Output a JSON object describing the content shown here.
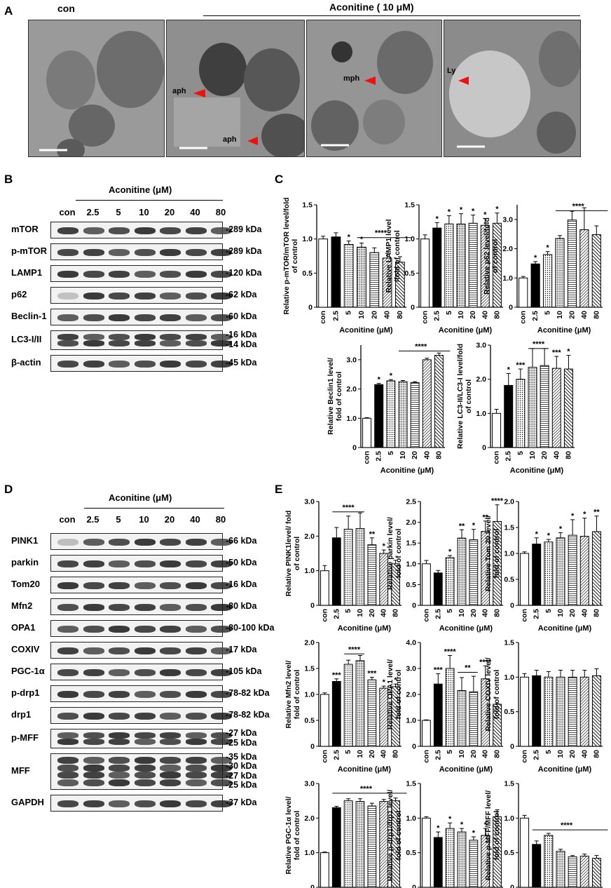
{
  "panels": {
    "A": "A",
    "B": "B",
    "C": "C",
    "D": "D",
    "E": "E"
  },
  "panelA": {
    "con_label": "con",
    "treat_label": "Aconitine ( 10 μM)",
    "arrows": [
      "aph",
      "aph",
      "mph",
      "Ly"
    ]
  },
  "doses": [
    "con",
    "2.5",
    "5",
    "10",
    "20",
    "40",
    "80"
  ],
  "aconitine_header": "Aconitine (μM)",
  "blotB": [
    {
      "name": "mTOR",
      "kda": "-289 kDa"
    },
    {
      "name": "p-mTOR",
      "kda": "-289 kDa"
    },
    {
      "name": "LAMP1",
      "kda": "-120 kDa"
    },
    {
      "name": "p62",
      "kda": "-62 kDa"
    },
    {
      "name": "Beclin-1",
      "kda": "-60 kDa"
    },
    {
      "name": "LC3-I/II",
      "kda": "-16 kDa",
      "kda2": "-14 kDa"
    },
    {
      "name": "β-actin",
      "kda": "-45 kDa"
    }
  ],
  "blotD": [
    {
      "name": "PINK1",
      "kda": "-66 kDa"
    },
    {
      "name": "parkin",
      "kda": "-50 kDa"
    },
    {
      "name": "Tom20",
      "kda": "-16 kDa"
    },
    {
      "name": "Mfn2",
      "kda": "-80 kDa"
    },
    {
      "name": "OPA1",
      "kda": "-80-100 kDa"
    },
    {
      "name": "COXIV",
      "kda": "-17 kDa"
    },
    {
      "name": "PGC-1α",
      "kda": "-105 kDa"
    },
    {
      "name": "p-drp1",
      "kda": "-78-82 kDa"
    },
    {
      "name": "drp1",
      "kda": "-78-82 kDa"
    },
    {
      "name": "p-MFF",
      "kda": "-27 kDa",
      "kda2": "-25 kDa"
    },
    {
      "name": "MFF",
      "kda": "-35 kDa",
      "kda2": "-30 kDa",
      "kda3": "-27 kDa",
      "kda4": "-25 kDa"
    },
    {
      "name": "GAPDH",
      "kda": "-37 kDa"
    }
  ],
  "xlabel": "Aconitine  (μM)",
  "chart_data": [
    {
      "type": "bar",
      "id": "C1",
      "ylabel": "Relative p-mTOR/mTOR level/fold of control",
      "ylim": [
        0,
        1.5
      ],
      "yticks": [
        "0",
        "0.5",
        "1.0",
        "1.5"
      ],
      "tickvals": [
        0,
        0.5,
        1.0,
        1.5
      ],
      "categories": [
        "con",
        "2.5",
        "5",
        "10",
        "20",
        "40",
        "80"
      ],
      "values": [
        1.0,
        1.03,
        0.92,
        0.88,
        0.8,
        0.72,
        0.66
      ],
      "errors": [
        0.04,
        0.06,
        0.05,
        0.06,
        0.07,
        0.07,
        0.08
      ],
      "stars": [
        "",
        "",
        "*",
        "*",
        "",
        "",
        ""
      ],
      "lines": [
        {
          "from": 3,
          "to": 6,
          "label": "****",
          "y": 1.02
        }
      ]
    },
    {
      "type": "bar",
      "id": "C2",
      "ylabel": "Relative LAMP1 level /fold of control",
      "ylim": [
        0,
        1.5
      ],
      "yticks": [
        "0",
        "0.5",
        "1.0",
        "1.5"
      ],
      "tickvals": [
        0,
        0.5,
        1.0,
        1.5
      ],
      "categories": [
        "con",
        "2.5",
        "5",
        "10",
        "20",
        "40",
        "80"
      ],
      "values": [
        1.0,
        1.16,
        1.22,
        1.22,
        1.23,
        1.2,
        1.23
      ],
      "errors": [
        0.06,
        0.08,
        0.12,
        0.15,
        0.12,
        0.1,
        0.15
      ],
      "stars": [
        "",
        "*",
        "*",
        "*",
        "*",
        "*",
        "*"
      ],
      "lines": []
    },
    {
      "type": "bar",
      "id": "C3",
      "ylabel": "Relative p62 level/fold of control",
      "ylim": [
        0,
        3.5
      ],
      "yticks": [
        "0",
        "1.0",
        "2.0",
        "3.0"
      ],
      "tickvals": [
        0,
        1.0,
        2.0,
        3.0
      ],
      "categories": [
        "con",
        "2.5",
        "5",
        "10",
        "20",
        "40",
        "80"
      ],
      "values": [
        1.0,
        1.48,
        1.8,
        2.35,
        2.98,
        2.65,
        2.48
      ],
      "errors": [
        0.05,
        0.08,
        0.1,
        0.1,
        0.3,
        0.75,
        0.3
      ],
      "stars": [
        "",
        "*",
        "*",
        "",
        "",
        "",
        ""
      ],
      "lines": [
        {
          "from": 3,
          "to": 6,
          "label": "****",
          "y": 3.3
        }
      ]
    },
    {
      "type": "bar",
      "id": "C4",
      "ylabel": "Relative Beclin1 level/ fold of control",
      "ylim": [
        0,
        3.5
      ],
      "yticks": [
        "0",
        "1.0",
        "2.0",
        "3.0"
      ],
      "tickvals": [
        0,
        1.0,
        2.0,
        3.0
      ],
      "categories": [
        "con",
        "2.5",
        "5",
        "10",
        "20",
        "40",
        "80"
      ],
      "values": [
        1.0,
        2.15,
        2.28,
        2.25,
        2.22,
        3.0,
        3.15
      ],
      "errors": [
        0.02,
        0.04,
        0.04,
        0.04,
        0.03,
        0.05,
        0.08
      ],
      "stars": [
        "",
        "*",
        "*",
        "",
        "",
        "",
        ""
      ],
      "lines": [
        {
          "from": 3,
          "to": 6,
          "label": "****",
          "y": 3.3
        }
      ]
    },
    {
      "type": "bar",
      "id": "C5",
      "ylabel": "Relative LC3-II/LC3-I level/fold of control",
      "ylim": [
        0,
        3.0
      ],
      "yticks": [
        "0",
        "1.0",
        "2.0",
        "3.0"
      ],
      "tickvals": [
        0,
        1.0,
        2.0,
        3.0
      ],
      "categories": [
        "con",
        "2.5",
        "5",
        "10",
        "20",
        "40",
        "80"
      ],
      "values": [
        1.0,
        1.82,
        2.0,
        2.35,
        2.4,
        2.32,
        2.3
      ],
      "errors": [
        0.12,
        0.35,
        0.3,
        0.55,
        0.5,
        0.35,
        0.4
      ],
      "stars": [
        "",
        "*",
        "***",
        "",
        "",
        "***",
        "*"
      ],
      "lines": [
        {
          "from": 3,
          "to": 4,
          "label": "****",
          "y": 2.9
        }
      ]
    },
    {
      "type": "bar",
      "id": "E1",
      "ylabel": "Relative PINK1level/ fold of control",
      "ylim": [
        0,
        3.0
      ],
      "yticks": [
        "0",
        "1.0",
        "2.0",
        "3.0"
      ],
      "tickvals": [
        0,
        1.0,
        2.0,
        3.0
      ],
      "categories": [
        "con",
        "2.5",
        "5",
        "10",
        "20",
        "40",
        "80"
      ],
      "values": [
        1.0,
        1.95,
        2.2,
        2.22,
        1.75,
        1.5,
        1.2
      ],
      "errors": [
        0.15,
        0.3,
        0.38,
        0.45,
        0.2,
        0.1,
        0.1
      ],
      "stars": [
        "",
        "",
        "",
        "",
        "**",
        "*",
        ""
      ],
      "lines": [
        {
          "from": 1,
          "to": 3,
          "label": "****",
          "y": 2.7
        }
      ]
    },
    {
      "type": "bar",
      "id": "E2",
      "ylabel": "Relative parkin level/ fold of control",
      "ylim": [
        0,
        2.5
      ],
      "yticks": [
        "0",
        "0.5",
        "1.0",
        "1.5",
        "2.0",
        "2.5"
      ],
      "tickvals": [
        0,
        0.5,
        1.0,
        1.5,
        2.0,
        2.5
      ],
      "categories": [
        "con",
        "2.5",
        "5",
        "10",
        "20",
        "40",
        "80"
      ],
      "values": [
        1.0,
        0.78,
        1.15,
        1.62,
        1.58,
        1.78,
        2.02
      ],
      "errors": [
        0.08,
        0.06,
        0.05,
        0.2,
        0.25,
        0.25,
        0.4
      ],
      "stars": [
        "",
        "",
        "*",
        "**",
        "*",
        "**",
        "****"
      ],
      "lines": []
    },
    {
      "type": "bar",
      "id": "E3",
      "ylabel": "Relative Tom 20 level/ fold of control",
      "ylim": [
        0,
        2.0
      ],
      "yticks": [
        "0",
        "0.5",
        "1.0",
        "1.5",
        "2.0"
      ],
      "tickvals": [
        0,
        0.5,
        1.0,
        1.5,
        2.0
      ],
      "categories": [
        "con",
        "2.5",
        "5",
        "10",
        "20",
        "40",
        "80"
      ],
      "values": [
        1.0,
        1.18,
        1.22,
        1.3,
        1.35,
        1.33,
        1.42
      ],
      "errors": [
        0.03,
        0.12,
        0.05,
        0.1,
        0.3,
        0.35,
        0.3
      ],
      "stars": [
        "",
        "*",
        "*",
        "*",
        "*",
        "*",
        "**"
      ],
      "lines": []
    },
    {
      "type": "bar",
      "id": "E4",
      "ylabel": "Relative Mfn2 level/ fold of control",
      "ylim": [
        0,
        2.0
      ],
      "yticks": [
        "0",
        "0.5",
        "1.0",
        "1.5",
        "2.0"
      ],
      "tickvals": [
        0,
        0.5,
        1.0,
        1.5,
        2.0
      ],
      "categories": [
        "con",
        "2.5",
        "5",
        "10",
        "20",
        "40",
        "80"
      ],
      "values": [
        1.0,
        1.25,
        1.58,
        1.65,
        1.28,
        1.12,
        1.15
      ],
      "errors": [
        0.03,
        0.05,
        0.08,
        0.1,
        0.05,
        0.04,
        0.05
      ],
      "stars": [
        "",
        "***",
        "",
        "",
        "***",
        "*",
        "*"
      ],
      "lines": [
        {
          "from": 2,
          "to": 3,
          "label": "****",
          "y": 1.78
        }
      ]
    },
    {
      "type": "bar",
      "id": "E5",
      "ylabel": "Relative OPA1 level/ fold of control",
      "ylim": [
        0,
        4.0
      ],
      "yticks": [
        "0",
        "1.0",
        "2.0",
        "3.0",
        "4.0"
      ],
      "tickvals": [
        0,
        1.0,
        2.0,
        3.0,
        4.0
      ],
      "categories": [
        "con",
        "2.5",
        "5",
        "10",
        "20",
        "40",
        "80"
      ],
      "values": [
        1.0,
        2.4,
        3.0,
        2.15,
        2.1,
        2.6,
        1.62
      ],
      "errors": [
        0.02,
        0.4,
        0.5,
        0.5,
        0.6,
        0.5,
        0.02
      ],
      "stars": [
        "",
        "***",
        "****",
        "",
        "",
        "****",
        ""
      ],
      "lines": [
        {
          "from": 3,
          "to": 4,
          "label": "**",
          "y": 2.85
        }
      ]
    },
    {
      "type": "bar",
      "id": "E6",
      "ylabel": "Relative COXIV level/ fold of control",
      "ylim": [
        0,
        1.5
      ],
      "yticks": [
        "0",
        "0.5",
        "1.0",
        "1.5"
      ],
      "tickvals": [
        0,
        0.5,
        1.0,
        1.5
      ],
      "categories": [
        "con",
        "2.5",
        "5",
        "10",
        "20",
        "40",
        "80"
      ],
      "values": [
        1.0,
        1.02,
        1.0,
        1.0,
        1.0,
        1.0,
        1.02
      ],
      "errors": [
        0.05,
        0.08,
        0.08,
        0.1,
        0.1,
        0.1,
        0.1
      ],
      "stars": [
        "",
        "",
        "",
        "",
        "",
        "",
        ""
      ],
      "lines": []
    },
    {
      "type": "bar",
      "id": "E7",
      "ylabel": "Relative PGC-1α  level/ fold of control",
      "ylim": [
        0,
        3.0
      ],
      "yticks": [
        "0",
        "1.0",
        "2.0",
        "3.0"
      ],
      "tickvals": [
        0,
        1.0,
        2.0,
        3.0
      ],
      "categories": [
        "con",
        "2.5",
        "5",
        "10",
        "20",
        "40",
        "80"
      ],
      "values": [
        1.0,
        2.3,
        2.5,
        2.48,
        2.35,
        2.48,
        2.5
      ],
      "errors": [
        0.02,
        0.04,
        0.06,
        0.08,
        0.08,
        0.06,
        0.08
      ],
      "stars": [
        "",
        "",
        "",
        "",
        "",
        "",
        ""
      ],
      "lines": [
        {
          "from": 1,
          "to": 6,
          "label": "****",
          "y": 2.72
        }
      ]
    },
    {
      "type": "bar",
      "id": "E8",
      "ylabel": "Relative p-drp1/drp1 level/ fold of control",
      "ylim": [
        0,
        1.5
      ],
      "yticks": [
        "0",
        "0.5",
        "1.0",
        "1.5"
      ],
      "tickvals": [
        0,
        0.5,
        1.0,
        1.5
      ],
      "categories": [
        "con",
        "2.5",
        "5",
        "10",
        "20",
        "40",
        "80"
      ],
      "values": [
        1.0,
        0.72,
        0.85,
        0.8,
        0.68,
        0.75,
        1.02
      ],
      "errors": [
        0.02,
        0.08,
        0.08,
        0.05,
        0.05,
        0.1,
        0.1
      ],
      "stars": [
        "",
        "*",
        "*",
        "*",
        "*",
        "*",
        ""
      ],
      "lines": []
    },
    {
      "type": "bar",
      "id": "E9",
      "ylabel": "Relative p-MFF/MFF level/ fold of control",
      "ylim": [
        0,
        1.5
      ],
      "yticks": [
        "0",
        "0.5",
        "1.0",
        "1.5"
      ],
      "tickvals": [
        0,
        0.5,
        1.0,
        1.5
      ],
      "categories": [
        "con",
        "2.5",
        "5",
        "10",
        "20",
        "40",
        "80"
      ],
      "values": [
        1.0,
        0.62,
        0.75,
        0.52,
        0.44,
        0.45,
        0.42
      ],
      "errors": [
        0.04,
        0.05,
        0.03,
        0.03,
        0.02,
        0.03,
        0.04
      ],
      "stars": [
        "",
        "",
        "",
        "",
        "",
        "",
        ""
      ],
      "lines": [
        {
          "from": 1,
          "to": 6,
          "label": "****",
          "y": 0.83
        }
      ]
    }
  ]
}
